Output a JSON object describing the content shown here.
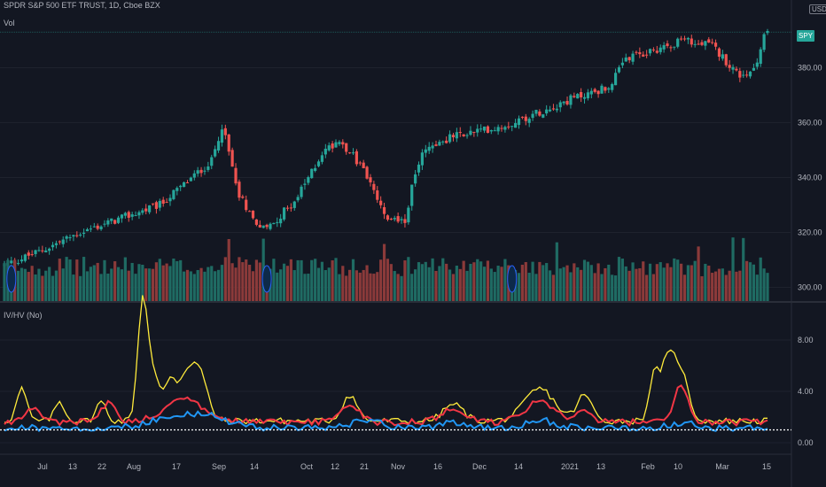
{
  "header": {
    "title": "SPDR S&P 500 ETF TRUST, 1D, Cboe BZX",
    "vol_label": "Vol",
    "currency": "USD",
    "symbol_badge": "SPY"
  },
  "indicator": {
    "label": "IV/HV (No)"
  },
  "colors": {
    "up": "#26a69a",
    "down": "#ef5350",
    "vol_up": "#1f6b63",
    "vol_down": "#8b3a3a",
    "yellow": "#ffeb3b",
    "red": "#f23645",
    "blue": "#2196f3",
    "white": "#ffffff"
  },
  "chart_data": [
    {
      "type": "candlestick",
      "title": "SPDR S&P 500 ETF TRUST, 1D, Cboe BZX",
      "y_ticks": [
        "380.00",
        "360.00",
        "340.00",
        "320.00",
        "300.00"
      ],
      "x_ticks": [
        "Jul",
        "13",
        "22",
        "Aug",
        "17",
        "Sep",
        "14",
        "Oct",
        "12",
        "21",
        "Nov",
        "16",
        "Dec",
        "14",
        "2021",
        "13",
        "Feb",
        "10",
        "Mar",
        "15"
      ],
      "ylim": [
        295,
        395
      ],
      "waypoints": [
        [
          0,
          308
        ],
        [
          10,
          313
        ],
        [
          22,
          320
        ],
        [
          45,
          330
        ],
        [
          60,
          346
        ],
        [
          63,
          359
        ],
        [
          68,
          334
        ],
        [
          72,
          325
        ],
        [
          76,
          321
        ],
        [
          85,
          333
        ],
        [
          92,
          349
        ],
        [
          97,
          354
        ],
        [
          104,
          343
        ],
        [
          110,
          326
        ],
        [
          116,
          324
        ],
        [
          118,
          336
        ],
        [
          121,
          350
        ],
        [
          130,
          355
        ],
        [
          145,
          359
        ],
        [
          165,
          369
        ],
        [
          175,
          373
        ],
        [
          180,
          383
        ],
        [
          185,
          385
        ],
        [
          196,
          390
        ],
        [
          205,
          388
        ],
        [
          210,
          381
        ],
        [
          214,
          376
        ],
        [
          218,
          382
        ],
        [
          220,
          392
        ]
      ],
      "volume_spikes": [
        65,
        75,
        110,
        160,
        201,
        211,
        214
      ]
    },
    {
      "type": "line",
      "title": "IV/HV (No)",
      "y_ticks": [
        "8.00",
        "4.00",
        "0.00"
      ],
      "ylim": [
        0,
        10
      ],
      "reference_line": 1,
      "series": [
        {
          "color": "yellow",
          "base": 1.7,
          "spikes": [
            [
              5,
              2.5,
              2
            ],
            [
              16,
              1.5,
              2
            ],
            [
              28,
              1.5,
              2
            ],
            [
              40,
              8.5,
              2
            ],
            [
              43,
              3.5,
              3
            ],
            [
              48,
              2.5,
              2
            ],
            [
              53,
              3.8,
              4
            ],
            [
              57,
              2.5,
              3
            ],
            [
              100,
              2.0,
              3
            ],
            [
              130,
              1.3,
              4
            ],
            [
              155,
              2.5,
              6
            ],
            [
              168,
              2.0,
              3
            ],
            [
              188,
              3.0,
              2
            ],
            [
              192,
              4.5,
              3
            ],
            [
              196,
              3.5,
              3
            ]
          ]
        },
        {
          "color": "red",
          "base": 1.6,
          "spikes": [
            [
              8,
              1.2,
              3
            ],
            [
              30,
              1.5,
              3
            ],
            [
              52,
              1.8,
              8
            ],
            [
              100,
              1.4,
              4
            ],
            [
              130,
              1.0,
              5
            ],
            [
              155,
              1.6,
              6
            ],
            [
              168,
              1.0,
              3
            ],
            [
              196,
              2.8,
              3
            ]
          ]
        },
        {
          "color": "blue",
          "base": 1.15,
          "spikes": [
            [
              50,
              0.9,
              10
            ],
            [
              60,
              0.6,
              8
            ],
            [
              105,
              0.6,
              6
            ],
            [
              130,
              0.4,
              5
            ],
            [
              155,
              0.6,
              6
            ],
            [
              196,
              0.4,
              5
            ]
          ]
        }
      ]
    }
  ]
}
